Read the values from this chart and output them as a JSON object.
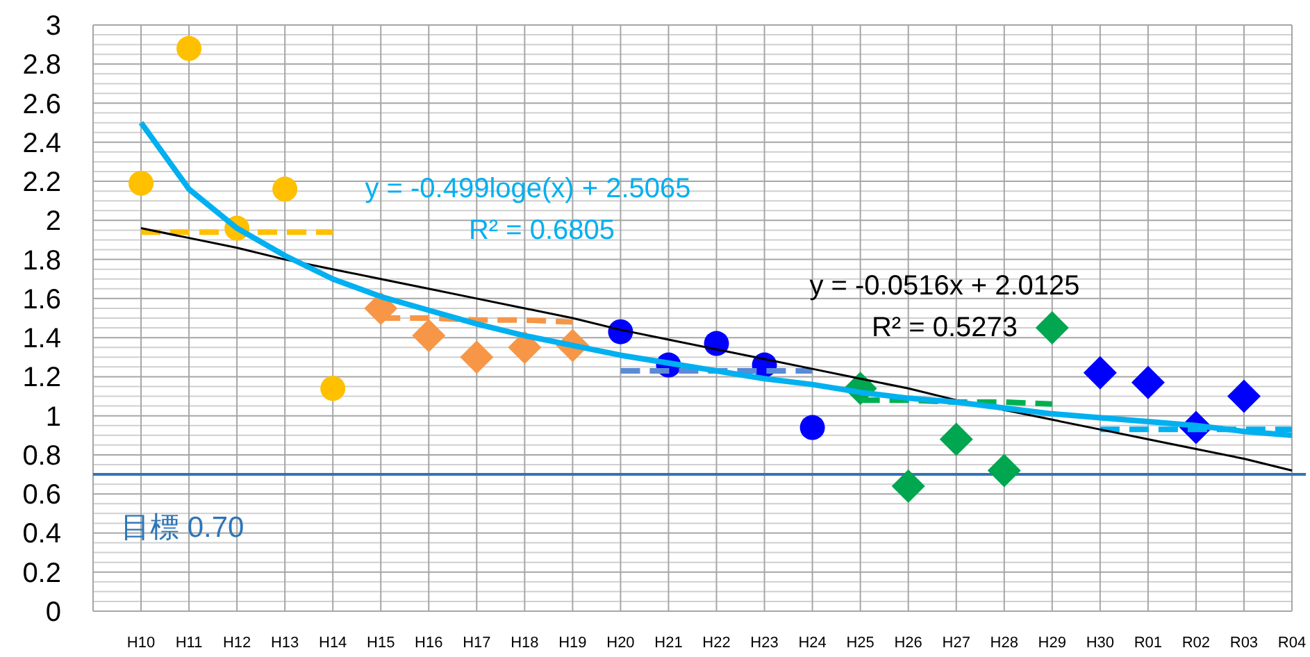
{
  "chart_data": {
    "type": "scatter",
    "categories": [
      "H10",
      "H11",
      "H12",
      "H13",
      "H14",
      "H15",
      "H16",
      "H17",
      "H18",
      "H19",
      "H20",
      "H21",
      "H22",
      "H23",
      "H24",
      "H25",
      "H26",
      "H27",
      "H28",
      "H29",
      "H30",
      "R01",
      "R02",
      "R03",
      "R04"
    ],
    "ylim": [
      0,
      3
    ],
    "yticks": [
      0,
      0.2,
      0.4,
      0.6,
      0.8,
      1,
      1.2,
      1.4,
      1.6,
      1.8,
      2,
      2.2,
      2.4,
      2.6,
      2.8,
      3
    ],
    "grid": true,
    "series": [
      {
        "marker": "circle",
        "color": "#ffc000",
        "values": [
          2.19,
          2.88,
          1.96,
          2.16,
          1.14,
          null,
          null,
          null,
          null,
          null,
          null,
          null,
          null,
          null,
          null,
          null,
          null,
          null,
          null,
          null,
          null,
          null,
          null,
          null,
          null
        ]
      },
      {
        "marker": "diamond",
        "color": "#f79646",
        "values": [
          null,
          null,
          null,
          null,
          null,
          1.55,
          1.41,
          1.3,
          1.35,
          1.36,
          null,
          null,
          null,
          null,
          null,
          null,
          null,
          null,
          null,
          null,
          null,
          null,
          null,
          null,
          null
        ]
      },
      {
        "marker": "circle",
        "color": "#0000ff",
        "values": [
          null,
          null,
          null,
          null,
          null,
          null,
          null,
          null,
          null,
          null,
          1.43,
          1.26,
          1.37,
          1.26,
          0.94,
          null,
          null,
          null,
          null,
          null,
          null,
          null,
          null,
          null,
          null
        ]
      },
      {
        "marker": "diamond",
        "color": "#00a650",
        "values": [
          null,
          null,
          null,
          null,
          null,
          null,
          null,
          null,
          null,
          null,
          null,
          null,
          null,
          null,
          null,
          1.14,
          0.64,
          0.88,
          0.72,
          1.45,
          null,
          null,
          null,
          null,
          null
        ]
      },
      {
        "marker": "diamond",
        "color": "#0000ff",
        "values": [
          null,
          null,
          null,
          null,
          null,
          null,
          null,
          null,
          null,
          null,
          null,
          null,
          null,
          null,
          null,
          null,
          null,
          null,
          null,
          null,
          1.22,
          1.17,
          0.94,
          1.1,
          null
        ]
      },
      {
        "type": "line",
        "line_style": "dashed",
        "color": "#ffc000",
        "values": [
          1.94,
          1.94,
          1.94,
          1.94,
          1.94,
          null,
          null,
          null,
          null,
          null,
          null,
          null,
          null,
          null,
          null,
          null,
          null,
          null,
          null,
          null,
          null,
          null,
          null,
          null,
          null
        ]
      },
      {
        "type": "line",
        "line_style": "dashed",
        "color": "#f79646",
        "values": [
          null,
          null,
          null,
          null,
          null,
          1.5,
          1.5,
          1.49,
          1.49,
          1.48,
          null,
          null,
          null,
          null,
          null,
          null,
          null,
          null,
          null,
          null,
          null,
          null,
          null,
          null,
          null
        ]
      },
      {
        "type": "line",
        "line_style": "dashed",
        "color": "#5b8bd6",
        "values": [
          null,
          null,
          null,
          null,
          null,
          null,
          null,
          null,
          null,
          null,
          1.23,
          1.23,
          1.23,
          1.23,
          1.23,
          null,
          null,
          null,
          null,
          null,
          null,
          null,
          null,
          null,
          null
        ]
      },
      {
        "type": "line",
        "line_style": "dashed",
        "color": "#00b050",
        "values": [
          null,
          null,
          null,
          null,
          null,
          null,
          null,
          null,
          null,
          null,
          null,
          null,
          null,
          null,
          null,
          1.08,
          1.08,
          1.07,
          1.07,
          1.06,
          null,
          null,
          null,
          null,
          null
        ]
      },
      {
        "type": "line",
        "line_style": "dashed",
        "color": "#00b0f0",
        "values": [
          null,
          null,
          null,
          null,
          null,
          null,
          null,
          null,
          null,
          null,
          null,
          null,
          null,
          null,
          null,
          null,
          null,
          null,
          null,
          null,
          0.93,
          0.93,
          0.93,
          0.93,
          0.93
        ]
      },
      {
        "type": "line",
        "line_style": "solid",
        "color": "#000000",
        "values": [
          1.96,
          1.91,
          1.86,
          1.8,
          1.75,
          1.7,
          1.65,
          1.6,
          1.55,
          1.5,
          1.44,
          1.39,
          1.34,
          1.29,
          1.24,
          1.19,
          1.14,
          1.08,
          1.03,
          0.98,
          0.93,
          0.88,
          0.83,
          0.78,
          0.72
        ]
      },
      {
        "type": "line",
        "line_style": "solid",
        "color": "#00b0f0",
        "values": [
          2.5,
          2.16,
          1.96,
          1.82,
          1.7,
          1.61,
          1.54,
          1.47,
          1.41,
          1.36,
          1.31,
          1.27,
          1.23,
          1.19,
          1.16,
          1.12,
          1.09,
          1.07,
          1.04,
          1.01,
          0.99,
          0.97,
          0.95,
          0.92,
          0.9
        ]
      }
    ],
    "ref_lines": [
      {
        "axis": "y",
        "value": 0.7,
        "label": "目標 0.70",
        "color": "#2e75b6"
      }
    ],
    "annotations": [
      "y = -0.499loge(x) + 2.5065",
      "R² = 0.6805",
      "y = -0.0516x + 2.0125",
      "R² = 0.5273"
    ]
  }
}
